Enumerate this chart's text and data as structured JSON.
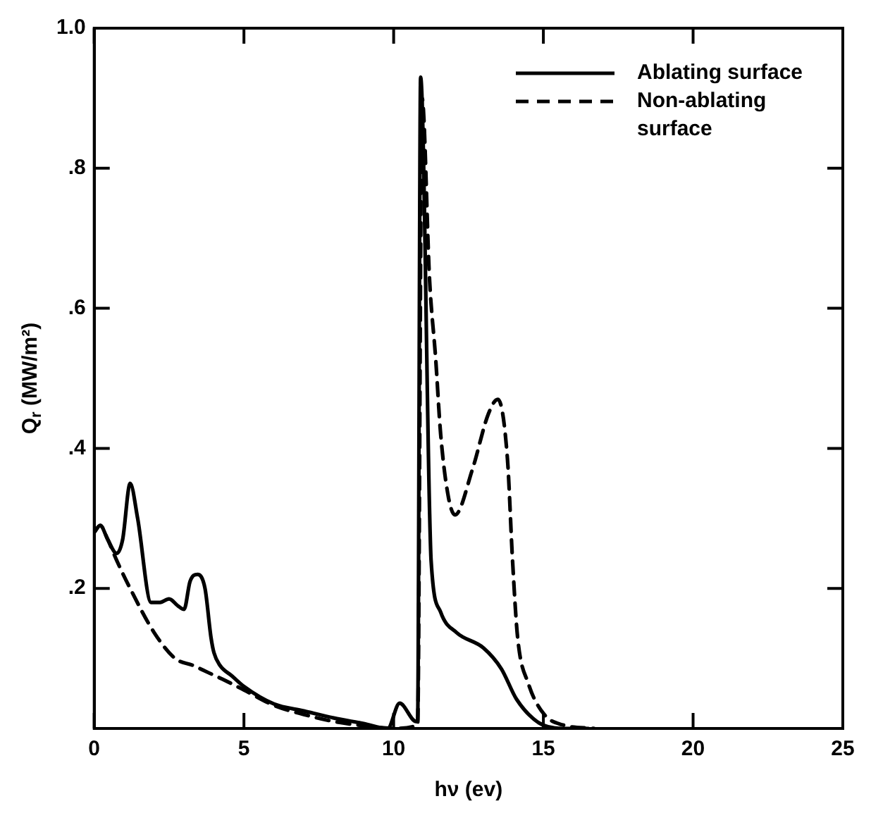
{
  "chart_data": {
    "type": "line",
    "xlabel": "hν (ev)",
    "ylabel": "Q$_{r}$ (MW/m²)",
    "xlim": [
      0,
      25
    ],
    "xticks": [
      0,
      5,
      10,
      15,
      20,
      25
    ],
    "ylim": [
      0,
      1.0
    ],
    "yticks": [
      {
        "value": 0.2,
        "label": ".2"
      },
      {
        "value": 0.4,
        "label": ".4"
      },
      {
        "value": 0.6,
        "label": ".6"
      },
      {
        "value": 0.8,
        "label": ".8"
      },
      {
        "value": 1.0,
        "label": "1.0"
      }
    ],
    "legend": "top right",
    "marker": "none",
    "series": [
      {
        "name": "Ablating surface",
        "color": "#000000",
        "line_style": "solid",
        "x": [
          0,
          0.2,
          0.45,
          0.75,
          0.95,
          1.2,
          1.45,
          1.9,
          2.2,
          2.5,
          2.8,
          3.0,
          3.2,
          3.45,
          3.7,
          3.9,
          4.0,
          4.2,
          4.6,
          5,
          6,
          7,
          8,
          9,
          9.8,
          10.2,
          10.75,
          10.8,
          10.9,
          11.2,
          11.25,
          11.57,
          12.1,
          13.0,
          13.6,
          14.1,
          14.85,
          15.6,
          16.5
        ],
        "values": [
          0.28,
          0.29,
          0.27,
          0.25,
          0.27,
          0.35,
          0.3,
          0.18,
          0.18,
          0.185,
          0.175,
          0.17,
          0.21,
          0.22,
          0.2,
          0.13,
          0.108,
          0.09,
          0.075,
          0.06,
          0.035,
          0.025,
          0.015,
          0.007,
          0,
          0.036,
          0.01,
          0.01,
          0.93,
          0.31,
          0.24,
          0.166,
          0.137,
          0.115,
          0.085,
          0.042,
          0.008,
          0,
          0
        ]
      },
      {
        "name": "Non-ablating surface",
        "color": "#000000",
        "line_style": "dashed",
        "x": [
          0,
          0.2,
          0.45,
          0.75,
          1.2,
          2,
          2.7,
          3.3,
          3.8,
          4.3,
          5,
          6,
          7,
          8,
          9,
          10,
          10.8,
          10.95,
          11.2,
          11.4,
          11.57,
          11.83,
          12.05,
          12.63,
          13.17,
          13.48,
          13.8,
          13.97,
          14.14,
          14.5,
          15.03,
          15.65,
          16.7
        ],
        "values": [
          0.28,
          0.29,
          0.27,
          0.24,
          0.2,
          0.137,
          0.1,
          0.09,
          0.08,
          0.07,
          0.055,
          0.033,
          0.02,
          0.01,
          0.004,
          0,
          0.005,
          0.9,
          0.64,
          0.53,
          0.42,
          0.33,
          0.305,
          0.37,
          0.45,
          0.47,
          0.385,
          0.24,
          0.13,
          0.064,
          0.02,
          0.005,
          0
        ]
      }
    ]
  }
}
